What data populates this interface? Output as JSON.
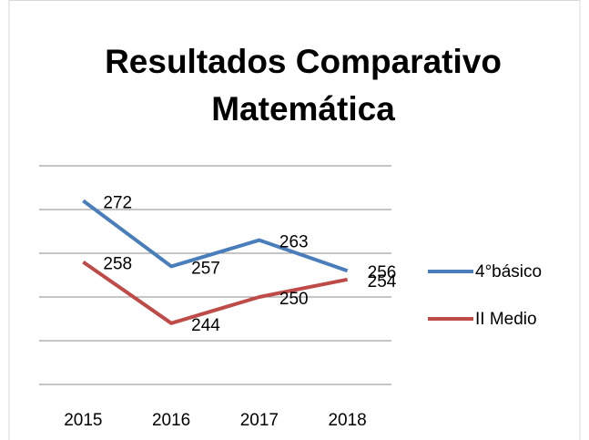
{
  "chart_data": {
    "type": "line",
    "title": "Resultados Comparativo Matemática",
    "categories": [
      "2015",
      "2016",
      "2017",
      "2018"
    ],
    "series": [
      {
        "name": "4°básico",
        "color": "#4a7ebb",
        "values": [
          272,
          257,
          263,
          256
        ]
      },
      {
        "name": "II Medio",
        "color": "#be4b48",
        "values": [
          258,
          244,
          250,
          254
        ]
      }
    ],
    "ylim": [
      230,
      280
    ],
    "yticks": [
      230,
      240,
      250,
      260,
      270,
      280
    ],
    "grid": true,
    "legend": "right"
  }
}
